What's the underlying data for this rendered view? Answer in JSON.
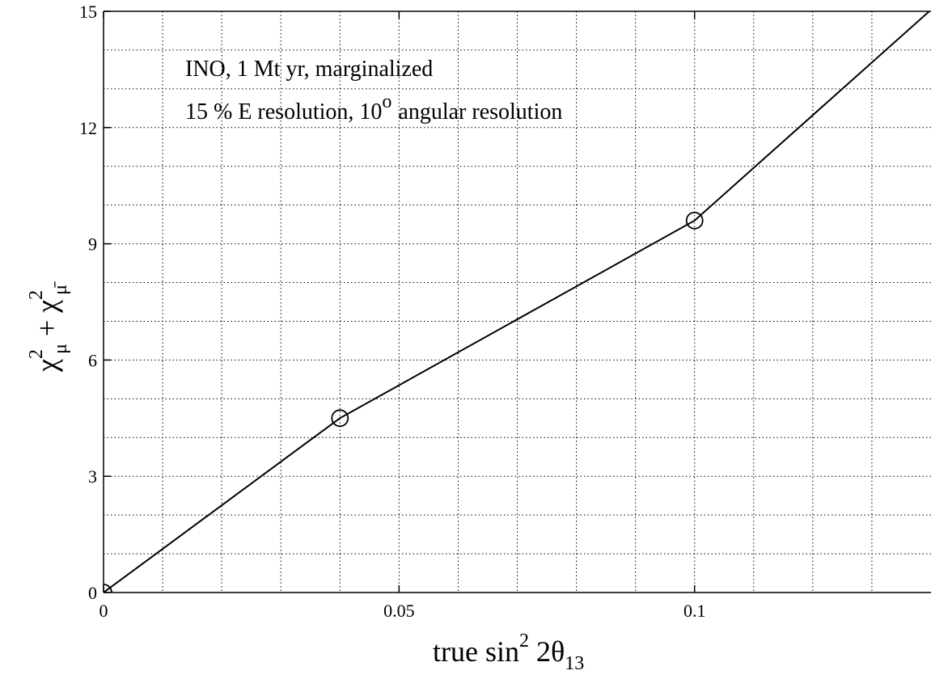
{
  "chart_data": {
    "type": "line",
    "annotations": [
      "INO, 1 Mt yr, marginalized",
      "15 % E resolution, 10",
      "o",
      "angular resolution"
    ],
    "xlabel": {
      "base": "true sin",
      "sup": "2",
      "mid": " 2θ",
      "sub": "13"
    },
    "ylabel": {
      "chi": "χ",
      "sup1": "2",
      "sub1": "μ",
      "plus": " + ",
      "sup2": "2",
      "sub2": "μ̄"
    },
    "xlim": [
      0,
      0.14
    ],
    "ylim": [
      0,
      15
    ],
    "xticks": [
      0,
      0.05,
      0.1
    ],
    "xtick_labels": [
      "0",
      "0.05",
      "0.1"
    ],
    "yticks": [
      0,
      3,
      6,
      9,
      12,
      15
    ],
    "ytick_labels": [
      "0",
      "3",
      "6",
      "9",
      "12",
      "15"
    ],
    "grid": true,
    "grid_x": [
      0.01,
      0.02,
      0.03,
      0.04,
      0.05,
      0.06,
      0.07,
      0.08,
      0.09,
      0.1,
      0.11,
      0.12,
      0.13
    ],
    "grid_y": [
      1,
      2,
      3,
      4,
      5,
      6,
      7,
      8,
      9,
      10,
      11,
      12,
      13,
      14
    ],
    "series": [
      {
        "x": [
          0,
          0.04,
          0.1,
          0.15
        ],
        "y": [
          0,
          4.5,
          9.6,
          16.4
        ],
        "markers_x": [
          0,
          0.04,
          0.1
        ],
        "markers_y": [
          0,
          4.5,
          9.6
        ],
        "color": "#000000"
      }
    ]
  }
}
